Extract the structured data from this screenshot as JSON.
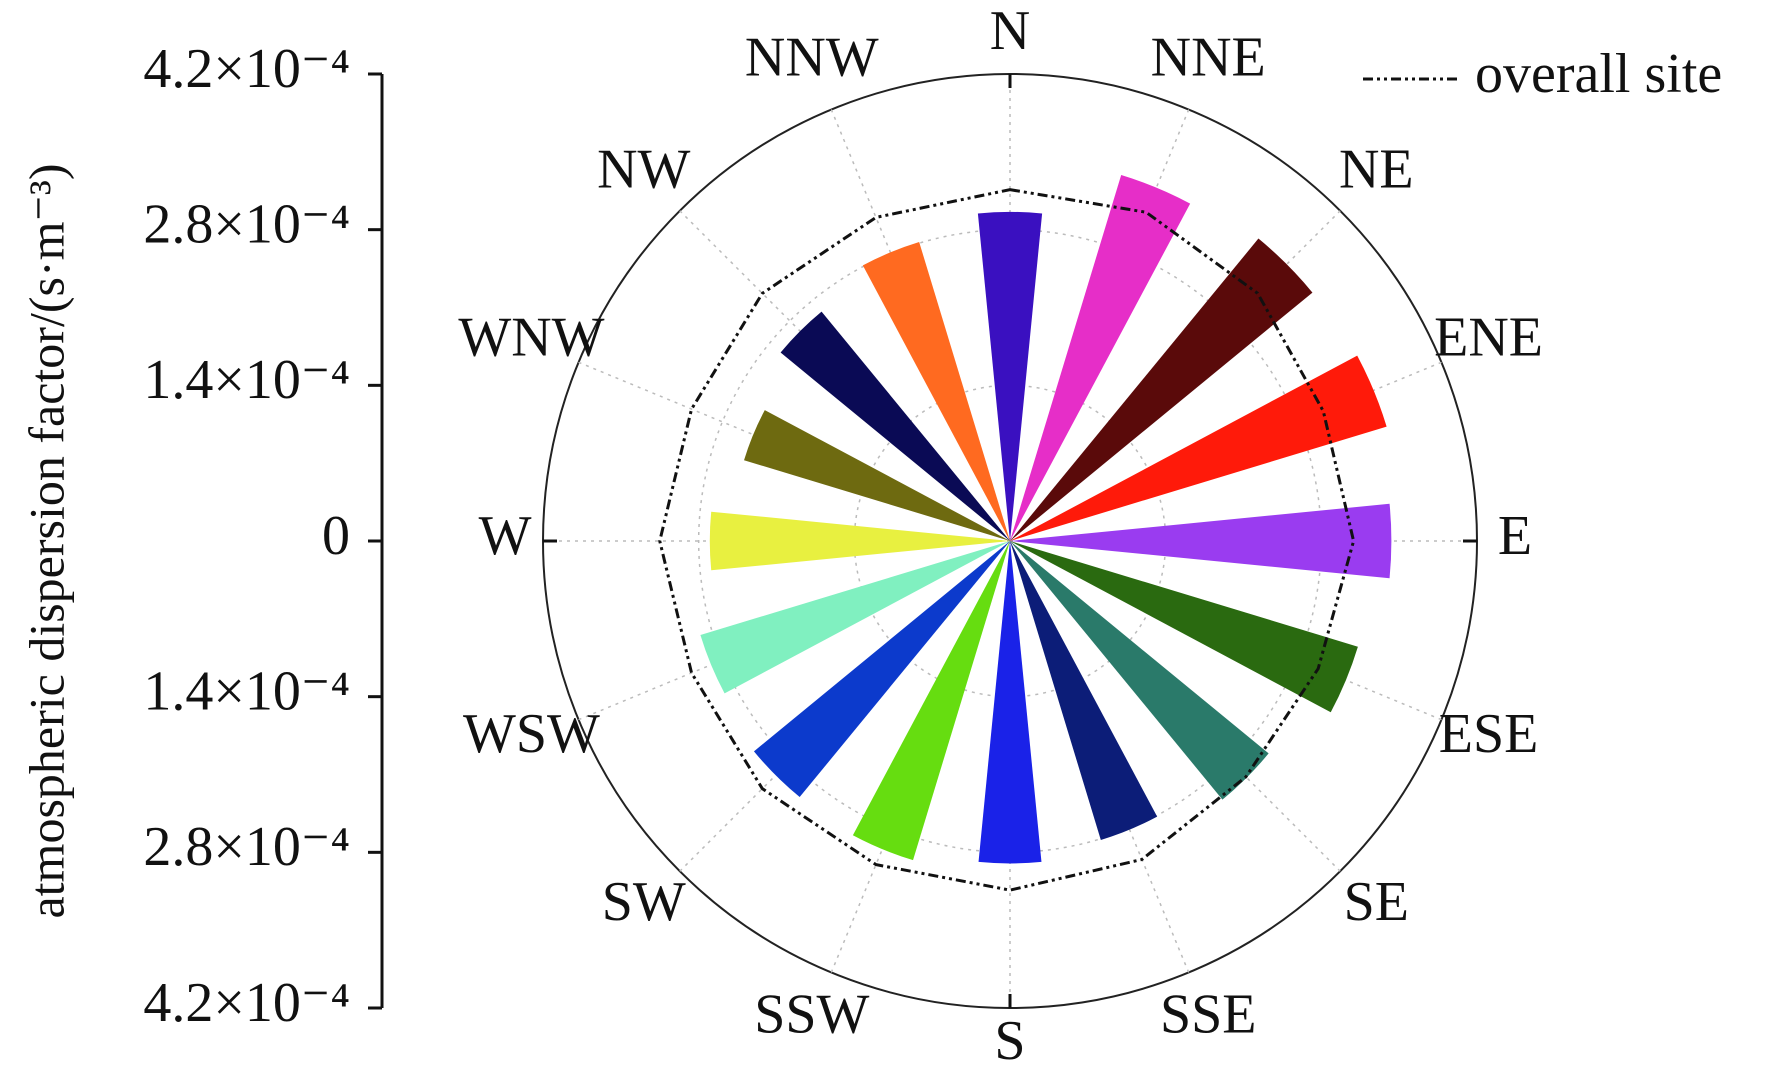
{
  "chart_data": {
    "type": "polar-bar",
    "ylabel": "atmospheric dispersion factor/(s·m⁻³)",
    "categories": [
      "N",
      "NNE",
      "NE",
      "ENE",
      "E",
      "ESE",
      "SE",
      "SSE",
      "S",
      "SSW",
      "SW",
      "WSW",
      "W",
      "WNW",
      "NW",
      "NNW"
    ],
    "ylim": [
      0,
      0.00042
    ],
    "yticks": [
      {
        "value": 0.00042,
        "label": "4.2×10⁻⁴"
      },
      {
        "value": 0.00028,
        "label": "2.8×10⁻⁴"
      },
      {
        "value": 0.00014,
        "label": "1.4×10⁻⁴"
      },
      0,
      {
        "value": 0.00014,
        "label": "1.4×10⁻⁴"
      },
      {
        "value": 0.00028,
        "label": "2.8×10⁻⁴"
      },
      {
        "value": 0.00042,
        "label": "4.2×10⁻⁴"
      }
    ],
    "grid": true,
    "legend": "upper right",
    "series": [
      {
        "type": "bar",
        "colors": [
          "#3a10c0",
          "#e62ec8",
          "#5a0a0a",
          "#ff1a0a",
          "#9a3cf0",
          "#2a6a10",
          "#2a7a6a",
          "#0c1d78",
          "#1a22e8",
          "#66dd10",
          "#0c3acc",
          "#80f0c0",
          "#e8f040",
          "#6e6a10",
          "#0a0a55",
          "#ff6a20"
        ],
        "values": [
          0.000296,
          0.000344,
          0.000352,
          0.000354,
          0.000343,
          0.000327,
          0.000301,
          0.000281,
          0.00029,
          0.0003,
          0.000298,
          0.000291,
          0.00027,
          0.00025,
          0.000267,
          0.000281
        ]
      },
      {
        "type": "line",
        "name": "overall site",
        "color": "#111111",
        "values": [
          0.000316,
          0.00032,
          0.000315,
          0.000305,
          0.000309,
          0.0003,
          0.0003,
          0.00031,
          0.000314,
          0.000315,
          0.000315,
          0.00031,
          0.000315,
          0.00031,
          0.000315,
          0.000315
        ]
      }
    ]
  }
}
